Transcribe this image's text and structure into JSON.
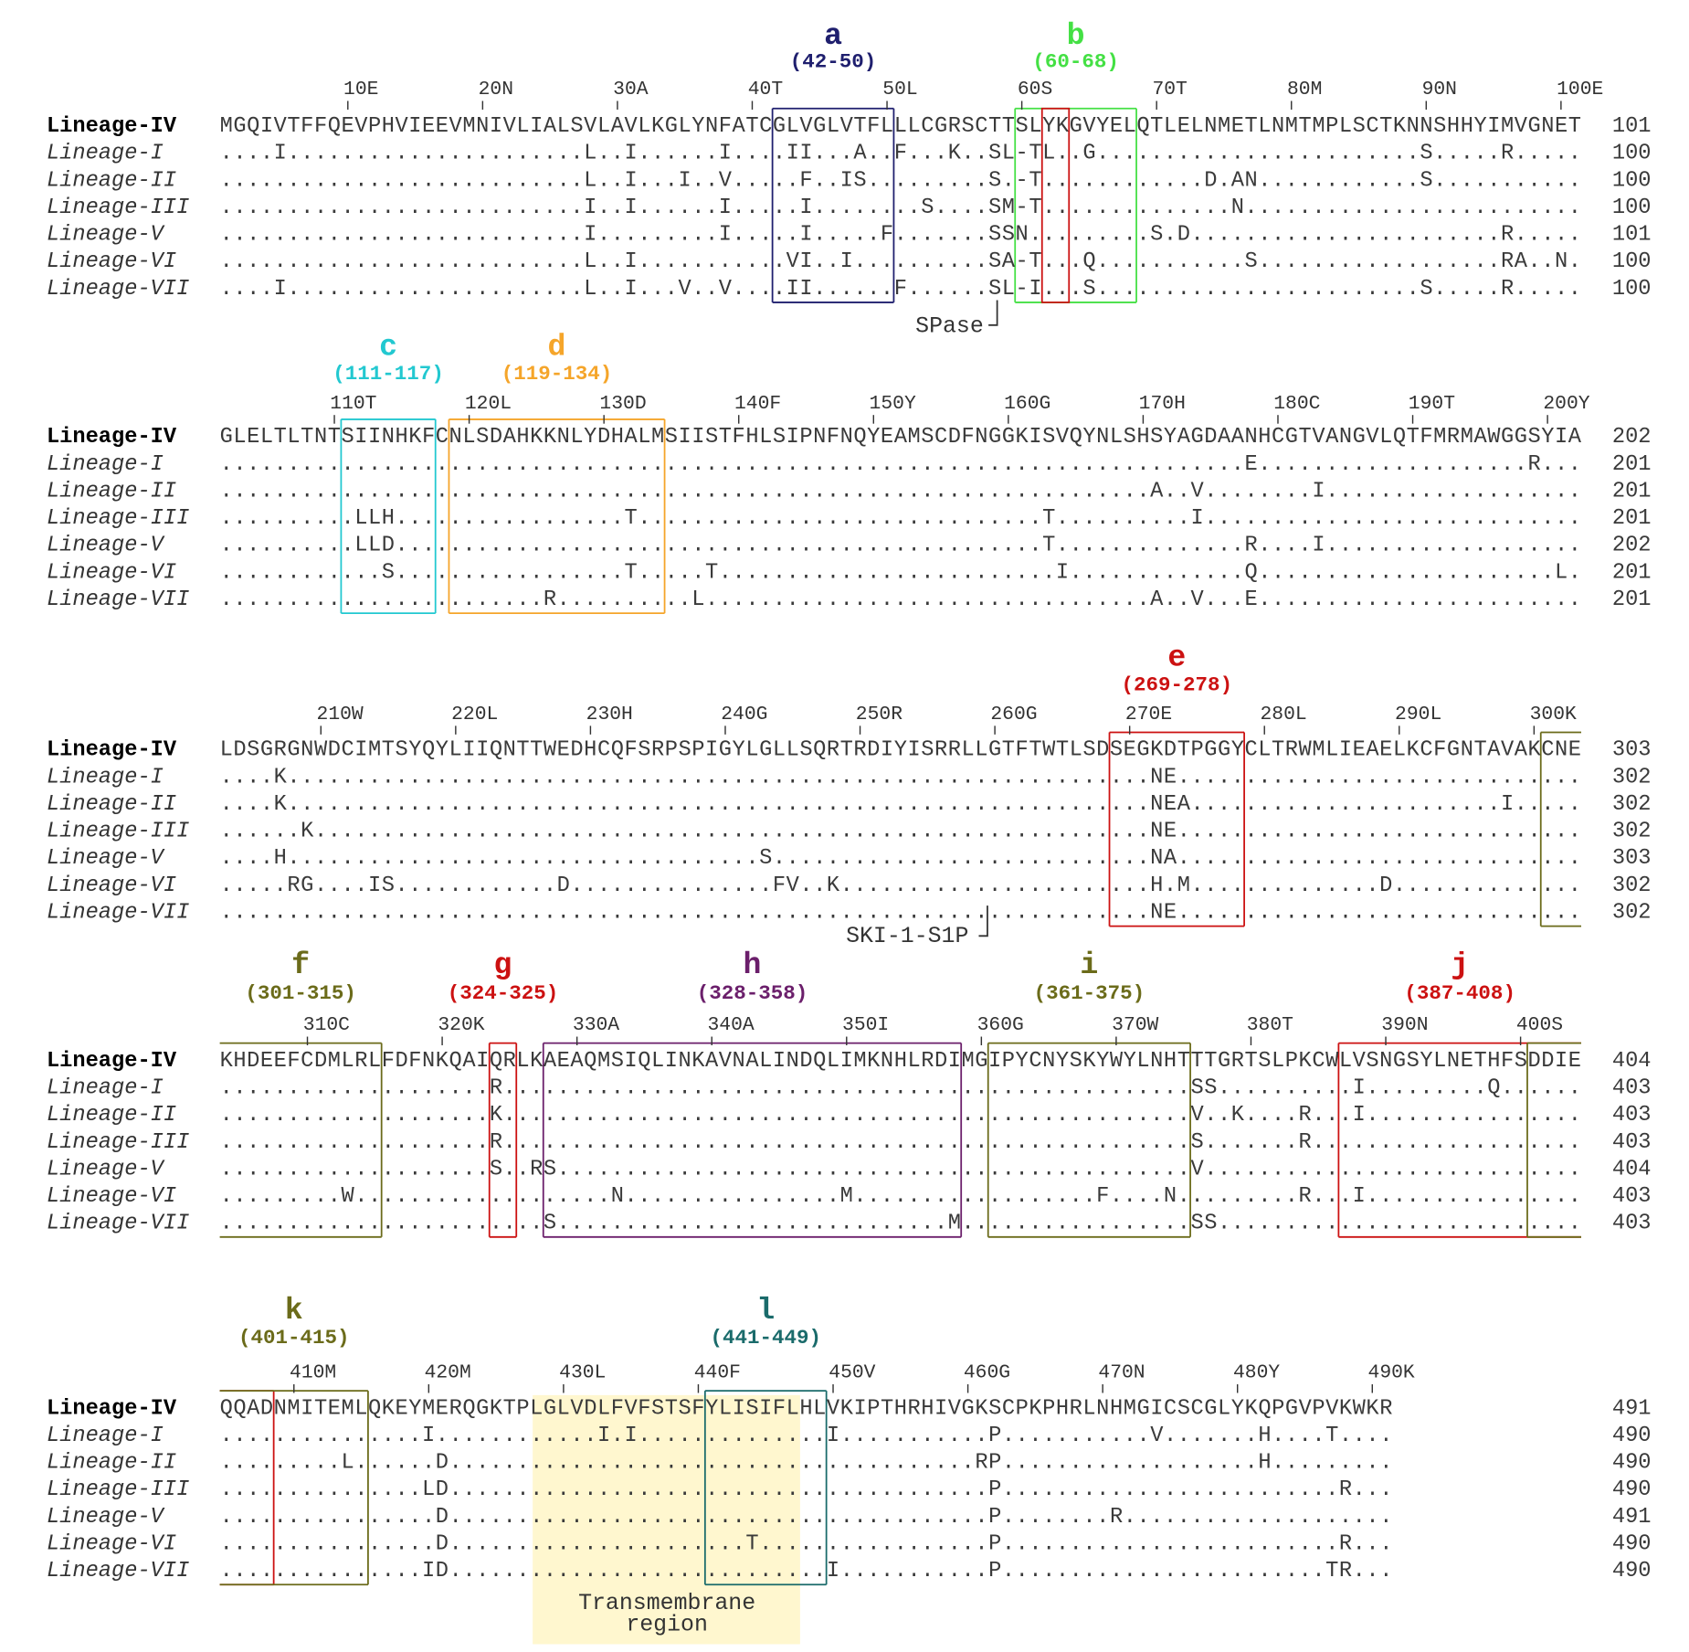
{
  "blocks": [
    {
      "ticks": [
        "10E",
        "20N",
        "30A",
        "40T",
        "50L",
        "60S",
        "70T",
        "80M",
        "90N",
        "100E"
      ],
      "regions": [
        {
          "letter": "a",
          "range": "(42-50)",
          "color": "#1f1f6e"
        },
        {
          "letter": "b",
          "range": "(60-68)",
          "color": "#44e044"
        }
      ],
      "rows": [
        {
          "name": "Lineage-IV",
          "sequence": "MGQIVTFFQEVPHVIEEVMNIVLIALSVLAVLKGLYNFATCGLVGLVTFLLLCGRSCTTSLYKGVYELQTLELNMETLNMTMPLSCTKNNSHHYIMVGNET",
          "end": 101
        },
        {
          "name": "Lineage-I",
          "sequence": "....I......................L..I......I....II...A..F...K..SL-TL..G........................S.....R.....",
          "end": 100
        },
        {
          "name": "Lineage-II",
          "sequence": "...........................L..I...I..V.....F..IS.........S.-T............D.AN............S...........",
          "end": 100
        },
        {
          "name": "Lineage-III",
          "sequence": "...........................I..I......I.....I........S....SM-T..............N.........................",
          "end": 100
        },
        {
          "name": "Lineage-V",
          "sequence": "...........................I.........I.....I.....F.......SSN.........S.D.......................R.....",
          "end": 101
        },
        {
          "name": "Lineage-VI",
          "sequence": "...........................L..I...........VI..I..........SA-T...Q...........S..................RA..N.",
          "end": 100
        },
        {
          "name": "Lineage-VII",
          "sequence": "....I......................L..I...V..V....II......F......SL-I...S........................S.....R.....",
          "end": 100
        }
      ],
      "annotation": "SPase"
    },
    {
      "ticks": [
        "110T",
        "120L",
        "130D",
        "140F",
        "150Y",
        "160G",
        "170H",
        "180C",
        "190T",
        "200Y"
      ],
      "regions": [
        {
          "letter": "c",
          "range": "(111-117)",
          "color": "#22c8d0"
        },
        {
          "letter": "d",
          "range": "(119-134)",
          "color": "#f5a52a"
        }
      ],
      "rows": [
        {
          "name": "Lineage-IV",
          "sequence": "GLELTLTNTSIINHKFCNLSDAHKKNLYDHALMSIISTFHLSIPNFNQYEAMSCDFNGGKISVQYNLSHSYAGDAANHCGTVANGVLQTFMRMAWGGSYIA",
          "end": 202
        },
        {
          "name": "Lineage-I",
          "sequence": "............................................................................E....................R...",
          "end": 201
        },
        {
          "name": "Lineage-II",
          "sequence": ".....................................................................A..V........I...................",
          "end": 201
        },
        {
          "name": "Lineage-III",
          "sequence": "..........LLH.................T..............................T..........I............................",
          "end": 201
        },
        {
          "name": "Lineage-V",
          "sequence": "..........LLD................................................T..............R....I...................",
          "end": 202
        },
        {
          "name": "Lineage-VI",
          "sequence": "............S.................T.....T.........................I.............Q......................L.",
          "end": 201
        },
        {
          "name": "Lineage-VII",
          "sequence": "........................R..........L.................................A..V...E........................",
          "end": 201
        }
      ]
    },
    {
      "ticks": [
        "210W",
        "220L",
        "230H",
        "240G",
        "250R",
        "260G",
        "270E",
        "280L",
        "290L",
        "300K"
      ],
      "regions": [
        {
          "letter": "e",
          "range": "(269-278)",
          "color": "#cc1111"
        }
      ],
      "rows": [
        {
          "name": "Lineage-IV",
          "sequence": "LDSGRGNWDCIMTSYQYLIIQNTTWEDHCQFSRPSPIGYLGLLSQRTRDIYISRRLLGTFTWTLSDSEGKDTPGGYCLTRWMLIEAELKCFGNTAVAKCNE",
          "end": 303
        },
        {
          "name": "Lineage-I",
          "sequence": "....K................................................................NE..............................",
          "end": 302
        },
        {
          "name": "Lineage-II",
          "sequence": "....K................................................................NEA.......................I.....",
          "end": 302
        },
        {
          "name": "Lineage-III",
          "sequence": "......K..............................................................NE..............................",
          "end": 302
        },
        {
          "name": "Lineage-V",
          "sequence": "....H...................................S............................NA..............................",
          "end": 303
        },
        {
          "name": "Lineage-VI",
          "sequence": ".....RG....IS............D...............FV..K.......................H.M..............D..............",
          "end": 302
        },
        {
          "name": "Lineage-VII",
          "sequence": ".....................................................................NE..............................",
          "end": 302
        }
      ],
      "annotation": "SKI-1-S1P"
    },
    {
      "ticks": [
        "310C",
        "320K",
        "330A",
        "340A",
        "350I",
        "360G",
        "370W",
        "380T",
        "390N",
        "400S"
      ],
      "regions": [
        {
          "letter": "f",
          "range": "(301-315)",
          "color": "#6b6b1a"
        },
        {
          "letter": "g",
          "range": "(324-325)",
          "color": "#cc1111"
        },
        {
          "letter": "h",
          "range": "(328-358)",
          "color": "#6b1f6b"
        },
        {
          "letter": "i",
          "range": "(361-375)",
          "color": "#6b6b1a"
        },
        {
          "letter": "j",
          "range": "(387-408)",
          "color": "#cc1111"
        }
      ],
      "rows": [
        {
          "name": "Lineage-IV",
          "sequence": "KHDEEFCDMLRLFDFNKQAIQRLKAEAQMSIQLINKAVNALINDQLIMKNHLRDIMGIPYCNYSKYWYLNHTTTGRTSLPKCWLVSNGSYLNETHFSDDIE",
          "end": 404
        },
        {
          "name": "Lineage-I",
          "sequence": "....................R...................................................SS..........I.........Q......",
          "end": 403
        },
        {
          "name": "Lineage-II",
          "sequence": "....................K...................................................V..K....R...I................",
          "end": 403
        },
        {
          "name": "Lineage-III",
          "sequence": "....................R...................................................S.......R....................",
          "end": 403
        },
        {
          "name": "Lineage-V",
          "sequence": "....................S..RS...............................................V............................",
          "end": 404
        },
        {
          "name": "Lineage-VI",
          "sequence": ".........W...................N................M..................F....N.........R...I................",
          "end": 403
        },
        {
          "name": "Lineage-VII",
          "sequence": "........................S.............................M.................SS...........................",
          "end": 403
        }
      ]
    },
    {
      "ticks": [
        "410M",
        "420M",
        "430L",
        "440F",
        "450V",
        "460G",
        "470N",
        "480Y",
        "490K"
      ],
      "regions": [
        {
          "letter": "k",
          "range": "(401-415)",
          "color": "#6b6b1a"
        },
        {
          "letter": "l",
          "range": "(441-449)",
          "color": "#1a6b6b"
        }
      ],
      "rows": [
        {
          "name": "Lineage-IV",
          "sequence": "QQADNMITEMLQKEYMERQGKTPLGLVDLFVFSTSFYLISIFLHLVKIPTHRHIVGKSCPKPHRLNHMGICSCGLYKQPGVPVKWKR",
          "end": 491
        },
        {
          "name": "Lineage-I",
          "sequence": "...............I............I.I..............I...........P...........V.......H....T....",
          "end": 490
        },
        {
          "name": "Lineage-II",
          "sequence": ".........L......D.......................................RP...................H.........",
          "end": 490
        },
        {
          "name": "Lineage-III",
          "sequence": "...............LD........................................P.........................R...",
          "end": 490
        },
        {
          "name": "Lineage-V",
          "sequence": "................D........................................P........R....................",
          "end": 491
        },
        {
          "name": "Lineage-VI",
          "sequence": "................D......................T.................P.........................R...",
          "end": 490
        },
        {
          "name": "Lineage-VII",
          "sequence": "...............ID............................I...........P........................TR...",
          "end": 490
        }
      ],
      "annotation": [
        "Transmembrane",
        "region"
      ]
    }
  ]
}
